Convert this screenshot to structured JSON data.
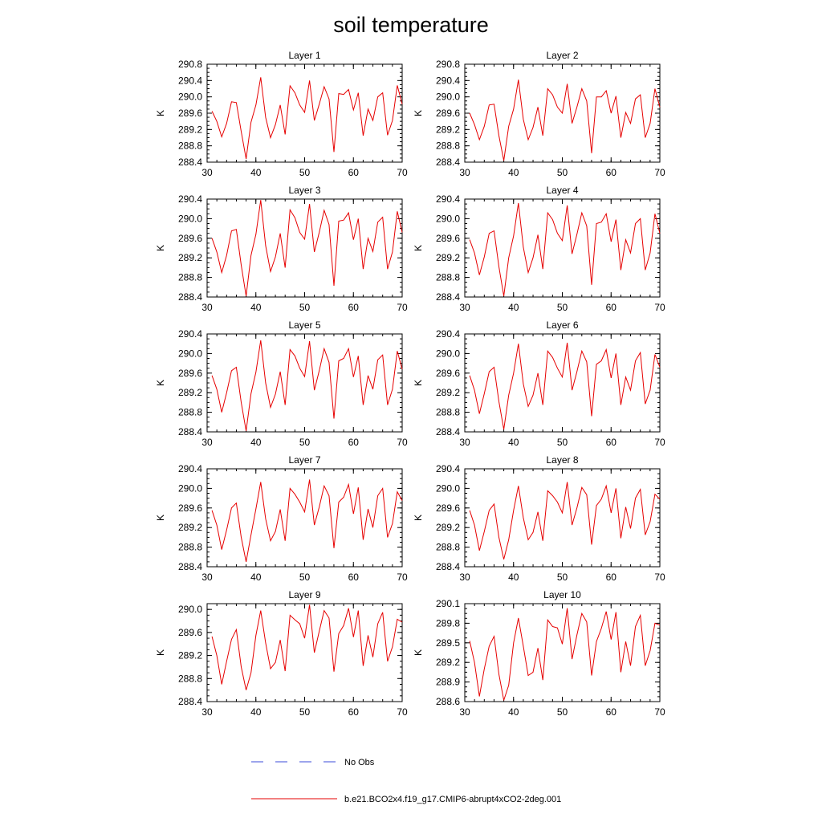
{
  "figure": {
    "title": "soil temperature",
    "legend": [
      {
        "label": "No Obs",
        "color": "#3b4bd8",
        "dash": "dashed"
      },
      {
        "label": "b.e21.BCO2x4.f19_g17.CMIP6-abrupt4xCO2-2deg.001",
        "color": "#e60000",
        "dash": "solid"
      }
    ]
  },
  "chart_data": [
    {
      "type": "line",
      "title": "Layer 1",
      "ylabel": "K",
      "xlim": [
        30,
        70
      ],
      "ylim": [
        288.4,
        290.8
      ],
      "xticks": [
        30,
        40,
        50,
        60,
        70
      ],
      "yticks": [
        288.4,
        288.8,
        289.2,
        289.6,
        290.0,
        290.4,
        290.8
      ],
      "ytick_labels": [
        "288.4",
        "288.8",
        "289.2",
        "289.6",
        "290.0",
        "290.4",
        "290.8"
      ],
      "x_start": 31,
      "values": [
        289.65,
        289.4,
        289.02,
        289.35,
        289.88,
        289.86,
        289.15,
        288.48,
        289.38,
        289.8,
        290.48,
        289.5,
        289.0,
        289.32,
        289.8,
        289.08,
        290.27,
        290.1,
        289.8,
        289.62,
        290.4,
        289.42,
        289.82,
        290.25,
        289.95,
        288.65,
        290.08,
        290.06,
        290.18,
        289.68,
        290.1,
        289.05,
        289.7,
        289.42,
        290.0,
        290.1,
        289.06,
        289.42,
        290.28,
        289.82
      ]
    },
    {
      "type": "line",
      "title": "Layer 2",
      "ylabel": "K",
      "xlim": [
        30,
        70
      ],
      "ylim": [
        288.4,
        290.8
      ],
      "xticks": [
        30,
        40,
        50,
        60,
        70
      ],
      "yticks": [
        288.4,
        288.8,
        289.2,
        289.6,
        290.0,
        290.4,
        290.8
      ],
      "ytick_labels": [
        "288.4",
        "288.8",
        "289.2",
        "289.6",
        "290.0",
        "290.4",
        "290.8"
      ],
      "x_start": 31,
      "values": [
        289.6,
        289.32,
        288.95,
        289.28,
        289.8,
        289.82,
        289.05,
        288.44,
        289.28,
        289.7,
        290.42,
        289.45,
        288.95,
        289.25,
        289.75,
        289.05,
        290.2,
        290.05,
        289.75,
        289.6,
        290.32,
        289.35,
        289.75,
        290.2,
        289.9,
        288.62,
        290.0,
        290.0,
        290.15,
        289.6,
        290.02,
        289.0,
        289.62,
        289.35,
        289.95,
        290.05,
        289.0,
        289.35,
        290.2,
        289.75
      ]
    },
    {
      "type": "line",
      "title": "Layer 3",
      "ylabel": "K",
      "xlim": [
        30,
        70
      ],
      "ylim": [
        288.4,
        290.4
      ],
      "xticks": [
        30,
        40,
        50,
        60,
        70
      ],
      "yticks": [
        288.4,
        288.8,
        289.2,
        289.6,
        290.0,
        290.4
      ],
      "ytick_labels": [
        "288.4",
        "288.8",
        "289.2",
        "289.6",
        "290.0",
        "290.4"
      ],
      "x_start": 31,
      "values": [
        289.6,
        289.32,
        288.9,
        289.25,
        289.75,
        289.78,
        289.05,
        288.42,
        289.25,
        289.68,
        290.38,
        289.45,
        288.92,
        289.22,
        289.7,
        289.0,
        290.18,
        290.02,
        289.72,
        289.58,
        290.3,
        289.32,
        289.72,
        290.17,
        289.88,
        288.63,
        289.95,
        289.97,
        290.12,
        289.57,
        290.0,
        288.97,
        289.6,
        289.33,
        289.93,
        290.03,
        288.97,
        289.32,
        290.15,
        289.72
      ]
    },
    {
      "type": "line",
      "title": "Layer 4",
      "ylabel": "K",
      "xlim": [
        30,
        70
      ],
      "ylim": [
        288.4,
        290.4
      ],
      "xticks": [
        30,
        40,
        50,
        60,
        70
      ],
      "yticks": [
        288.4,
        288.8,
        289.2,
        289.6,
        290.0,
        290.4
      ],
      "ytick_labels": [
        "288.4",
        "288.8",
        "289.2",
        "289.6",
        "290.0",
        "290.4"
      ],
      "x_start": 31,
      "values": [
        289.57,
        289.3,
        288.85,
        289.22,
        289.7,
        289.75,
        289.02,
        288.42,
        289.2,
        289.65,
        290.32,
        289.42,
        288.9,
        289.2,
        289.67,
        288.97,
        290.12,
        289.98,
        289.7,
        289.55,
        290.27,
        289.28,
        289.68,
        290.12,
        289.85,
        288.65,
        289.9,
        289.93,
        290.1,
        289.53,
        289.98,
        288.95,
        289.57,
        289.3,
        289.9,
        290.0,
        288.95,
        289.3,
        290.1,
        289.7
      ]
    },
    {
      "type": "line",
      "title": "Layer 5",
      "ylabel": "K",
      "xlim": [
        30,
        70
      ],
      "ylim": [
        288.4,
        290.4
      ],
      "xticks": [
        30,
        40,
        50,
        60,
        70
      ],
      "yticks": [
        288.4,
        288.8,
        289.2,
        289.6,
        290.0,
        290.4
      ],
      "ytick_labels": [
        "288.4",
        "288.8",
        "289.2",
        "289.6",
        "290.0",
        "290.4"
      ],
      "x_start": 31,
      "values": [
        289.55,
        289.27,
        288.8,
        289.2,
        289.65,
        289.72,
        289.0,
        288.42,
        289.18,
        289.62,
        290.27,
        289.4,
        288.9,
        289.17,
        289.63,
        288.95,
        290.08,
        289.95,
        289.7,
        289.53,
        290.25,
        289.25,
        289.65,
        290.1,
        289.82,
        288.67,
        289.85,
        289.9,
        290.1,
        289.52,
        289.95,
        288.95,
        289.55,
        289.27,
        289.87,
        289.97,
        288.95,
        289.27,
        290.05,
        289.68
      ]
    },
    {
      "type": "line",
      "title": "Layer 6",
      "ylabel": "K",
      "xlim": [
        30,
        70
      ],
      "ylim": [
        288.4,
        290.4
      ],
      "xticks": [
        30,
        40,
        50,
        60,
        70
      ],
      "yticks": [
        288.4,
        288.8,
        289.2,
        289.6,
        290.0,
        290.4
      ],
      "ytick_labels": [
        "288.4",
        "288.8",
        "289.2",
        "289.6",
        "290.0",
        "290.4"
      ],
      "x_start": 31,
      "values": [
        289.55,
        289.25,
        288.77,
        289.18,
        289.63,
        289.72,
        289.02,
        288.45,
        289.15,
        289.6,
        290.2,
        289.38,
        288.92,
        289.15,
        289.6,
        288.95,
        290.05,
        289.92,
        289.7,
        289.52,
        290.22,
        289.25,
        289.63,
        290.05,
        289.83,
        288.72,
        289.78,
        289.85,
        290.08,
        289.5,
        290.0,
        288.95,
        289.52,
        289.25,
        289.85,
        290.02,
        288.97,
        289.25,
        289.98,
        289.72
      ]
    },
    {
      "type": "line",
      "title": "Layer 7",
      "ylabel": "K",
      "xlim": [
        30,
        70
      ],
      "ylim": [
        288.4,
        290.4
      ],
      "xticks": [
        30,
        40,
        50,
        60,
        70
      ],
      "yticks": [
        288.4,
        288.8,
        289.2,
        289.6,
        290.0,
        290.4
      ],
      "ytick_labels": [
        "288.4",
        "288.8",
        "289.2",
        "289.6",
        "290.0",
        "290.4"
      ],
      "x_start": 31,
      "values": [
        289.55,
        289.25,
        288.75,
        289.15,
        289.6,
        289.7,
        289.0,
        288.5,
        289.05,
        289.58,
        290.13,
        289.38,
        288.93,
        289.12,
        289.57,
        288.93,
        290.0,
        289.88,
        289.72,
        289.52,
        290.18,
        289.25,
        289.62,
        290.05,
        289.85,
        288.78,
        289.72,
        289.82,
        290.08,
        289.48,
        290.02,
        288.95,
        289.58,
        289.2,
        289.85,
        290.0,
        289.0,
        289.28,
        289.93,
        289.75
      ]
    },
    {
      "type": "line",
      "title": "Layer 8",
      "ylabel": "K",
      "xlim": [
        30,
        70
      ],
      "ylim": [
        288.4,
        290.4
      ],
      "xticks": [
        30,
        40,
        50,
        60,
        70
      ],
      "yticks": [
        288.4,
        288.8,
        289.2,
        289.6,
        290.0,
        290.4
      ],
      "ytick_labels": [
        "288.4",
        "288.8",
        "289.2",
        "289.6",
        "290.0",
        "290.4"
      ],
      "x_start": 31,
      "values": [
        289.55,
        289.25,
        288.73,
        289.12,
        289.55,
        289.68,
        289.0,
        288.55,
        288.95,
        289.55,
        290.05,
        289.4,
        288.95,
        289.1,
        289.52,
        288.93,
        289.95,
        289.85,
        289.72,
        289.5,
        290.13,
        289.25,
        289.6,
        290.02,
        289.87,
        288.85,
        289.65,
        289.78,
        290.05,
        289.5,
        290.0,
        288.98,
        289.62,
        289.18,
        289.8,
        289.98,
        289.05,
        289.32,
        289.88,
        289.78
      ]
    },
    {
      "type": "line",
      "title": "Layer 9",
      "ylabel": "K",
      "xlim": [
        30,
        70
      ],
      "ylim": [
        288.4,
        290.1
      ],
      "xticks": [
        30,
        40,
        50,
        60,
        70
      ],
      "yticks": [
        288.4,
        288.8,
        289.2,
        289.6,
        290.0
      ],
      "ytick_labels": [
        "288.4",
        "288.8",
        "289.2",
        "289.6",
        "290.0"
      ],
      "x_start": 31,
      "values": [
        289.53,
        289.2,
        288.7,
        289.1,
        289.48,
        289.65,
        289.0,
        288.6,
        288.9,
        289.55,
        289.98,
        289.42,
        288.97,
        289.08,
        289.47,
        288.93,
        289.9,
        289.82,
        289.75,
        289.5,
        290.08,
        289.25,
        289.62,
        289.98,
        289.85,
        288.92,
        289.58,
        289.72,
        290.02,
        289.52,
        289.98,
        289.02,
        289.55,
        289.17,
        289.75,
        289.95,
        289.1,
        289.35,
        289.83,
        289.78
      ]
    },
    {
      "type": "line",
      "title": "Layer 10",
      "ylabel": "K",
      "xlim": [
        30,
        70
      ],
      "ylim": [
        288.6,
        290.1
      ],
      "xticks": [
        30,
        40,
        50,
        60,
        70
      ],
      "yticks": [
        288.6,
        288.9,
        289.2,
        289.5,
        289.8,
        290.1
      ],
      "ytick_labels": [
        "288.6",
        "288.9",
        "289.2",
        "289.5",
        "289.8",
        "290.1"
      ],
      "x_start": 31,
      "values": [
        289.53,
        289.2,
        288.68,
        289.1,
        289.45,
        289.6,
        289.02,
        288.62,
        288.85,
        289.5,
        289.88,
        289.45,
        289.0,
        289.05,
        289.42,
        288.93,
        289.85,
        289.75,
        289.73,
        289.48,
        290.03,
        289.25,
        289.62,
        289.95,
        289.82,
        289.0,
        289.52,
        289.72,
        289.98,
        289.55,
        289.97,
        289.05,
        289.52,
        289.15,
        289.75,
        289.92,
        289.15,
        289.38,
        289.8,
        289.77
      ]
    }
  ]
}
